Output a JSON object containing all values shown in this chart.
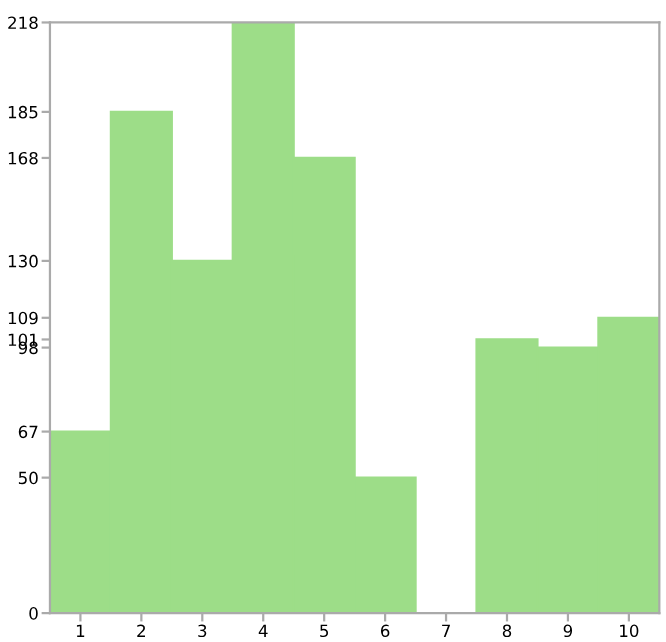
{
  "chart_data": {
    "type": "bar",
    "categories": [
      "1",
      "2",
      "3",
      "4",
      "5",
      "6",
      "7",
      "8",
      "9",
      "10"
    ],
    "values": [
      67,
      185,
      130,
      218,
      168,
      50,
      0,
      101,
      98,
      109
    ],
    "color": "#9ddd88",
    "ylim": [
      0,
      218
    ],
    "yticks": [
      0,
      50,
      67,
      98,
      101,
      109,
      130,
      168,
      185,
      218
    ],
    "grid": false
  }
}
